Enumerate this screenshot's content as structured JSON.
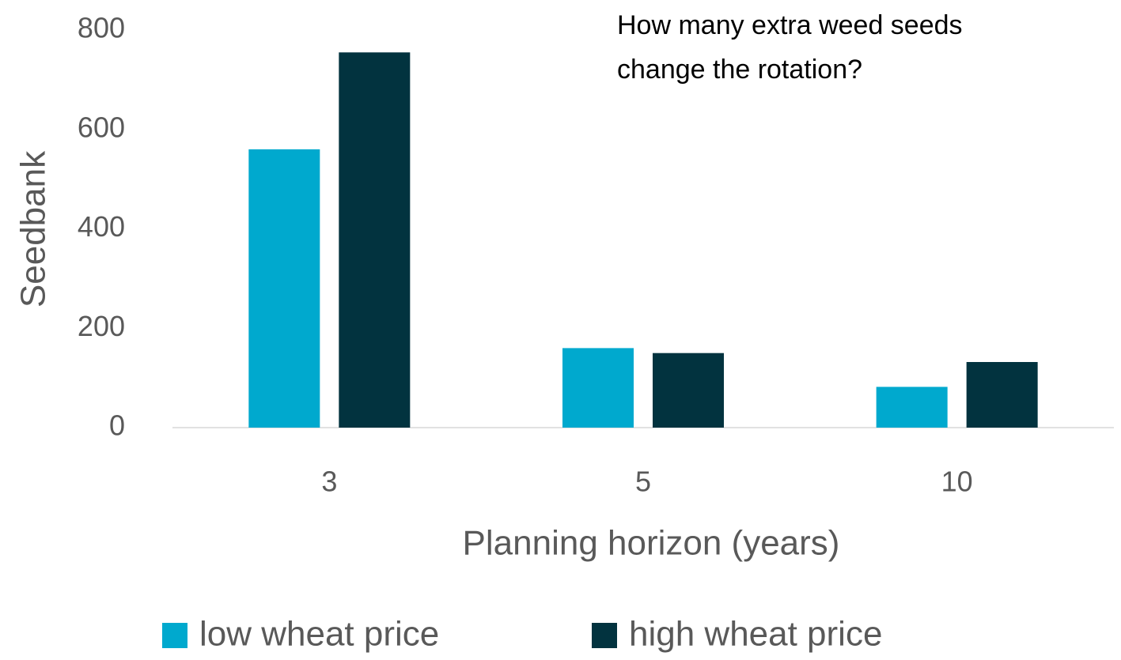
{
  "chart_data": {
    "type": "bar",
    "annotation": [
      "How many extra weed seeds",
      "change the rotation?"
    ],
    "xlabel": "Planning horizon (years)",
    "ylabel": "Seedbank",
    "categories": [
      "3",
      "5",
      "10"
    ],
    "series": [
      {
        "name": "low wheat price",
        "color": "#00a9ce",
        "values": [
          560,
          160,
          82
        ]
      },
      {
        "name": "high wheat price",
        "color": "#02333f",
        "values": [
          755,
          150,
          132
        ]
      }
    ],
    "ylim": [
      0,
      800
    ],
    "yticks": [
      0,
      200,
      400,
      600,
      800
    ],
    "legend": "bottom"
  }
}
